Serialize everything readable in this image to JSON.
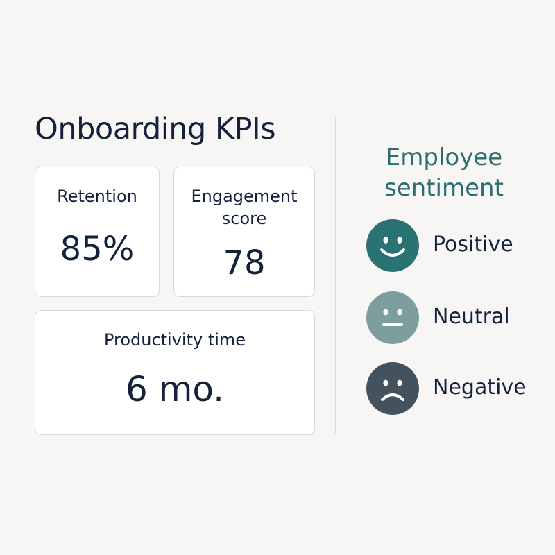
{
  "title": "Onboarding KPIs",
  "kpis": {
    "retention": {
      "label": "Retention",
      "value": "85%"
    },
    "engagement": {
      "label": "Engagement score",
      "value": "78"
    },
    "productivity": {
      "label": "Productivity time",
      "value": "6 mo."
    }
  },
  "sentiment": {
    "title": "Employee sentiment",
    "items": [
      {
        "label": "Positive",
        "icon": "smiling-face-icon",
        "color": "#2b7373"
      },
      {
        "label": "Neutral",
        "icon": "neutral-face-icon",
        "color": "#7e9d9f"
      },
      {
        "label": "Negative",
        "icon": "frowning-face-icon",
        "color": "#44525e"
      }
    ]
  },
  "colors": {
    "background": "#f7f6f4",
    "text": "#13213a",
    "accent": "#2a6e6e",
    "card_border": "#d7d9dc"
  }
}
